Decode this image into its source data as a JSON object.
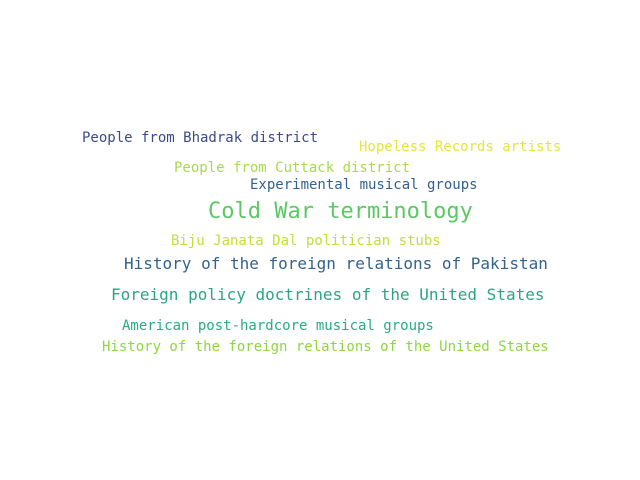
{
  "word_cloud": {
    "words": [
      {
        "text": "People from Bhadrak district",
        "color": "#3b4a8c"
      },
      {
        "text": "Hopeless Records artists",
        "color": "#e6e43a"
      },
      {
        "text": "People from Cuttack district",
        "color": "#a8d94e"
      },
      {
        "text": "Experimental musical groups",
        "color": "#34608d"
      },
      {
        "text": "Cold War terminology",
        "color": "#5cc863"
      },
      {
        "text": "Biju Janata Dal politician stubs",
        "color": "#c2de3a"
      },
      {
        "text": "History of the foreign relations of Pakistan",
        "color": "#33628d"
      },
      {
        "text": "Foreign policy doctrines of the United States",
        "color": "#2aa583"
      },
      {
        "text": "American post-hardcore musical groups",
        "color": "#26ab82"
      },
      {
        "text": "History of the foreign relations of the United States",
        "color": "#8ed645"
      }
    ]
  }
}
